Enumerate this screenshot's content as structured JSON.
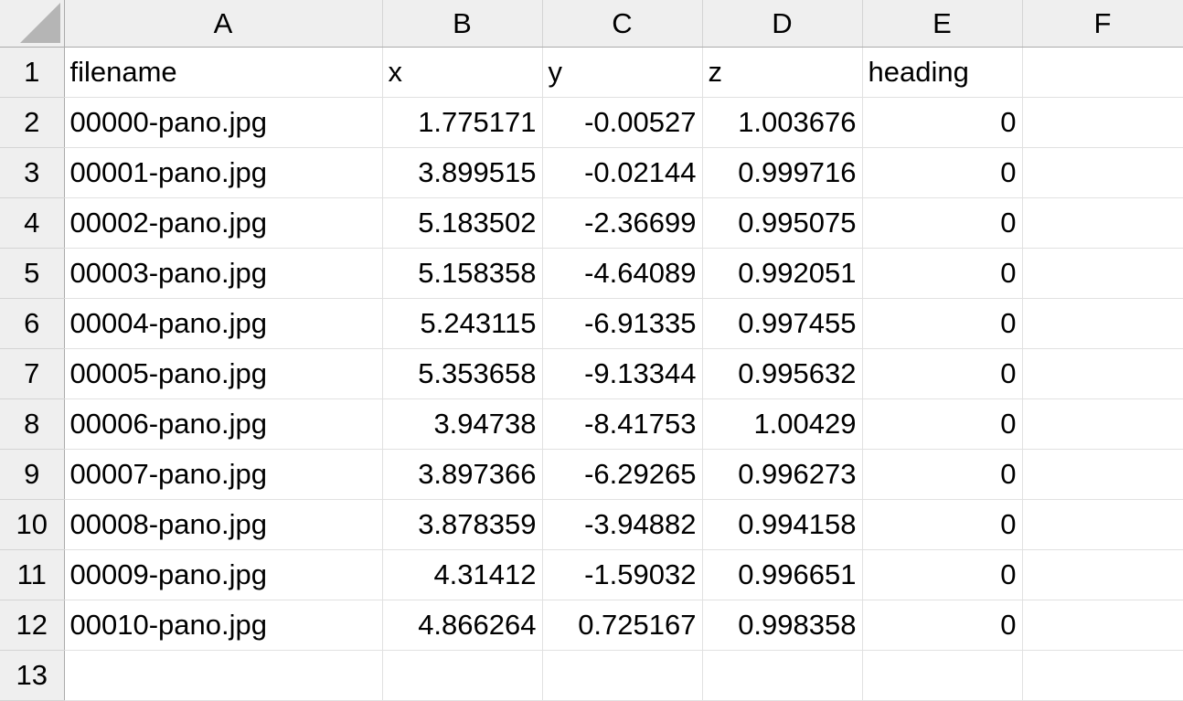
{
  "columns": [
    "A",
    "B",
    "C",
    "D",
    "E",
    "F"
  ],
  "row_numbers": [
    "1",
    "2",
    "3",
    "4",
    "5",
    "6",
    "7",
    "8",
    "9",
    "10",
    "11",
    "12",
    "13"
  ],
  "header_row": [
    "filename",
    "x",
    "y",
    "z",
    "heading",
    ""
  ],
  "rows": [
    [
      "00000-pano.jpg",
      "1.775171",
      "-0.00527",
      "1.003676",
      "0"
    ],
    [
      "00001-pano.jpg",
      "3.899515",
      "-0.02144",
      "0.999716",
      "0"
    ],
    [
      "00002-pano.jpg",
      "5.183502",
      "-2.36699",
      "0.995075",
      "0"
    ],
    [
      "00003-pano.jpg",
      "5.158358",
      "-4.64089",
      "0.992051",
      "0"
    ],
    [
      "00004-pano.jpg",
      "5.243115",
      "-6.91335",
      "0.997455",
      "0"
    ],
    [
      "00005-pano.jpg",
      "5.353658",
      "-9.13344",
      "0.995632",
      "0"
    ],
    [
      "00006-pano.jpg",
      "3.94738",
      "-8.41753",
      "1.00429",
      "0"
    ],
    [
      "00007-pano.jpg",
      "3.897366",
      "-6.29265",
      "0.996273",
      "0"
    ],
    [
      "00008-pano.jpg",
      "3.878359",
      "-3.94882",
      "0.994158",
      "0"
    ],
    [
      "00009-pano.jpg",
      "4.31412",
      "-1.59032",
      "0.996651",
      "0"
    ],
    [
      "00010-pano.jpg",
      "4.866264",
      "0.725167",
      "0.998358",
      "0"
    ]
  ]
}
